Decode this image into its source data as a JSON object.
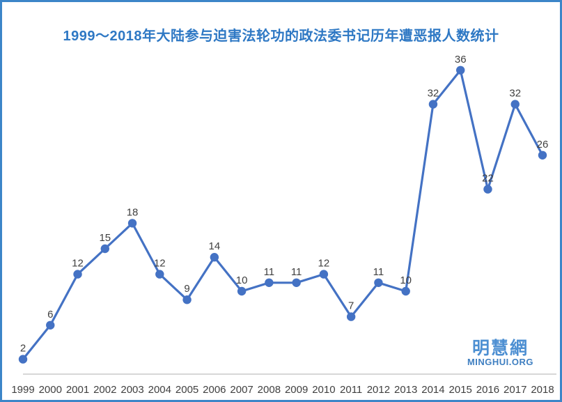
{
  "title": {
    "text": "1999～2018年大陆参与迫害法轮功的政法委书记历年遭恶报人数统计"
  },
  "watermark": {
    "cjk": "明慧網",
    "latin": "MINGHUI.ORG"
  },
  "colors": {
    "frame_border": "#3C85C8",
    "title_blue": "#2E78C4",
    "series_blue": "#4472C4",
    "data_label": "#404040",
    "axis_label": "#404040",
    "axis_line": "#BFBFBF",
    "watermark_cjk": "#4D8FD2",
    "watermark_latin": "#3F7FC1",
    "background": "#FFFFFF"
  },
  "chart_data": {
    "type": "line",
    "title": "1999～2018年大陆参与迫害法轮功的政法委书记历年遭恶报人数统计",
    "categories": [
      "1999",
      "2000",
      "2001",
      "2002",
      "2003",
      "2004",
      "2005",
      "2006",
      "2007",
      "2008",
      "2009",
      "2010",
      "2011",
      "2012",
      "2013",
      "2014",
      "2015",
      "2016",
      "2017",
      "2018"
    ],
    "values": [
      2,
      6,
      12,
      15,
      18,
      12,
      9,
      14,
      10,
      11,
      11,
      12,
      7,
      11,
      10,
      32,
      36,
      22,
      32,
      26
    ],
    "xlabel": "",
    "ylabel": "",
    "ylim": [
      0,
      40
    ],
    "grid": false,
    "legend": false,
    "data_labels": "above",
    "marker": "circle",
    "y_axis_visible": false,
    "x_axis_visible": true
  }
}
